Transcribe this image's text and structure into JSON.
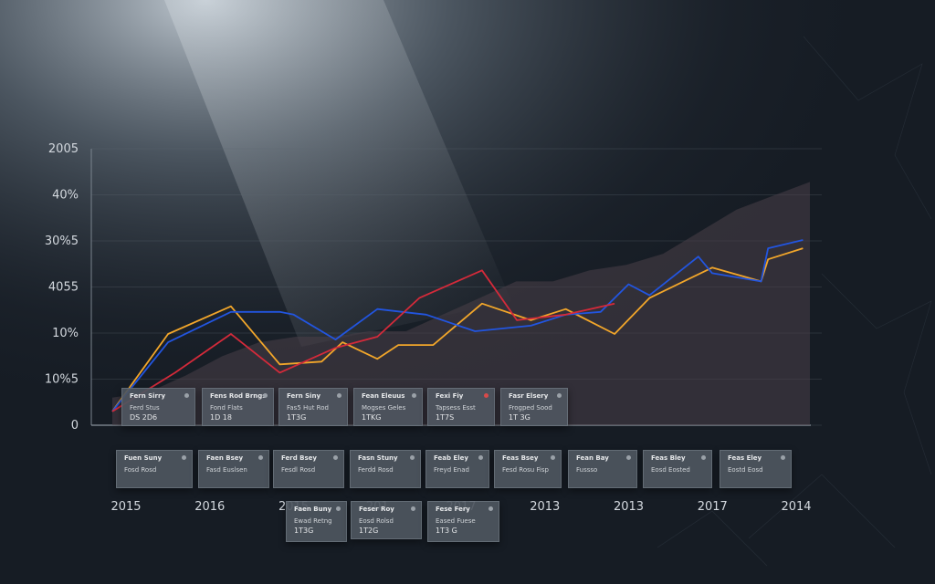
{
  "chart_data": {
    "type": "line",
    "y_tick_labels": [
      "2005",
      "40%",
      "30%5",
      "4055",
      "10%",
      "10%5",
      "0"
    ],
    "x_tick_labels": [
      "2015",
      "2016",
      "2015",
      "201",
      "2017",
      "2013",
      "2013",
      "2017",
      "2014"
    ],
    "grid": true,
    "series": [
      {
        "color": "#f2a62a",
        "values": [
          [
            0,
            5
          ],
          [
            0.08,
            33
          ],
          [
            0.17,
            43
          ],
          [
            0.24,
            22
          ],
          [
            0.3,
            23
          ],
          [
            0.33,
            30
          ],
          [
            0.38,
            24
          ],
          [
            0.41,
            29
          ],
          [
            0.46,
            29
          ],
          [
            0.53,
            44
          ],
          [
            0.6,
            38
          ],
          [
            0.65,
            42
          ],
          [
            0.72,
            33
          ],
          [
            0.77,
            46
          ],
          [
            0.86,
            57
          ],
          [
            0.93,
            52
          ],
          [
            0.94,
            60
          ],
          [
            0.99,
            64
          ]
        ]
      },
      {
        "color": "#2255e0",
        "values": [
          [
            0,
            5
          ],
          [
            0.08,
            30
          ],
          [
            0.17,
            41
          ],
          [
            0.24,
            41
          ],
          [
            0.26,
            40
          ],
          [
            0.32,
            31
          ],
          [
            0.38,
            42
          ],
          [
            0.45,
            40
          ],
          [
            0.52,
            34
          ],
          [
            0.6,
            36
          ],
          [
            0.65,
            40
          ],
          [
            0.7,
            41
          ],
          [
            0.74,
            51
          ],
          [
            0.77,
            47
          ],
          [
            0.84,
            61
          ],
          [
            0.86,
            55
          ],
          [
            0.93,
            52
          ],
          [
            0.94,
            64
          ],
          [
            0.99,
            67
          ]
        ]
      },
      {
        "color": "#d42a3a",
        "values": [
          [
            0,
            5
          ],
          [
            0.09,
            19
          ],
          [
            0.17,
            33
          ],
          [
            0.24,
            19
          ],
          [
            0.32,
            28
          ],
          [
            0.38,
            32
          ],
          [
            0.44,
            46
          ],
          [
            0.53,
            56
          ],
          [
            0.58,
            38
          ],
          [
            0.65,
            40
          ],
          [
            0.72,
            44
          ]
        ]
      }
    ],
    "area_values": [
      10,
      12,
      18,
      25,
      30,
      32,
      32,
      34,
      34,
      40,
      46,
      52,
      52,
      56,
      58,
      62,
      70,
      78,
      83,
      88
    ]
  },
  "cards": [
    {
      "title": "Fern Sirry",
      "sub": "Ferd Stus",
      "value": "DS 2D6"
    },
    {
      "title": "Fens Rod Brngs",
      "sub": "Fond Flats",
      "value": "1D 18"
    },
    {
      "title": "Fern Siny",
      "sub": "Fas5 Hut Rod",
      "value": "1T3G"
    },
    {
      "title": "Fean Eleuus",
      "sub": "Mogses Geles",
      "value": "1TKG"
    },
    {
      "title": "Fexi Fiy",
      "sub": "Tapsess Esst",
      "value": "1T7S"
    },
    {
      "title": "Fasr Elsery",
      "sub": "Frogped Sood",
      "value": "1T 3G"
    },
    {
      "title": "Fuen Suny",
      "sub": "Fosd Rosd",
      "value": ""
    },
    {
      "title": "Faen Bsey",
      "sub": "Fasd Euslsen",
      "value": ""
    },
    {
      "title": "Ferd Bsey",
      "sub": "Fesdl Rosd",
      "value": ""
    },
    {
      "title": "Fasn Stuny",
      "sub": "Ferdd Rosd",
      "value": ""
    },
    {
      "title": "Feab Eley",
      "sub": "Freyd Enad",
      "value": ""
    },
    {
      "title": "Feas Bsey",
      "sub": "Fesd Rosu Fisp",
      "value": ""
    },
    {
      "title": "Fean Bay",
      "sub": "Fussso",
      "value": ""
    },
    {
      "title": "Feas Bley",
      "sub": "Eosd Eosted",
      "value": ""
    },
    {
      "title": "Feas Eley",
      "sub": "Eostd Eosd",
      "value": ""
    },
    {
      "title": "Faen Buny",
      "sub": "Ewad Retng",
      "value": "1T3G"
    },
    {
      "title": "Feser Roy",
      "sub": "Eosd Rolsd",
      "value": "1T2G"
    },
    {
      "title": "Fese Fery",
      "sub": "Eased Fuese",
      "value": "1T3 G"
    }
  ]
}
